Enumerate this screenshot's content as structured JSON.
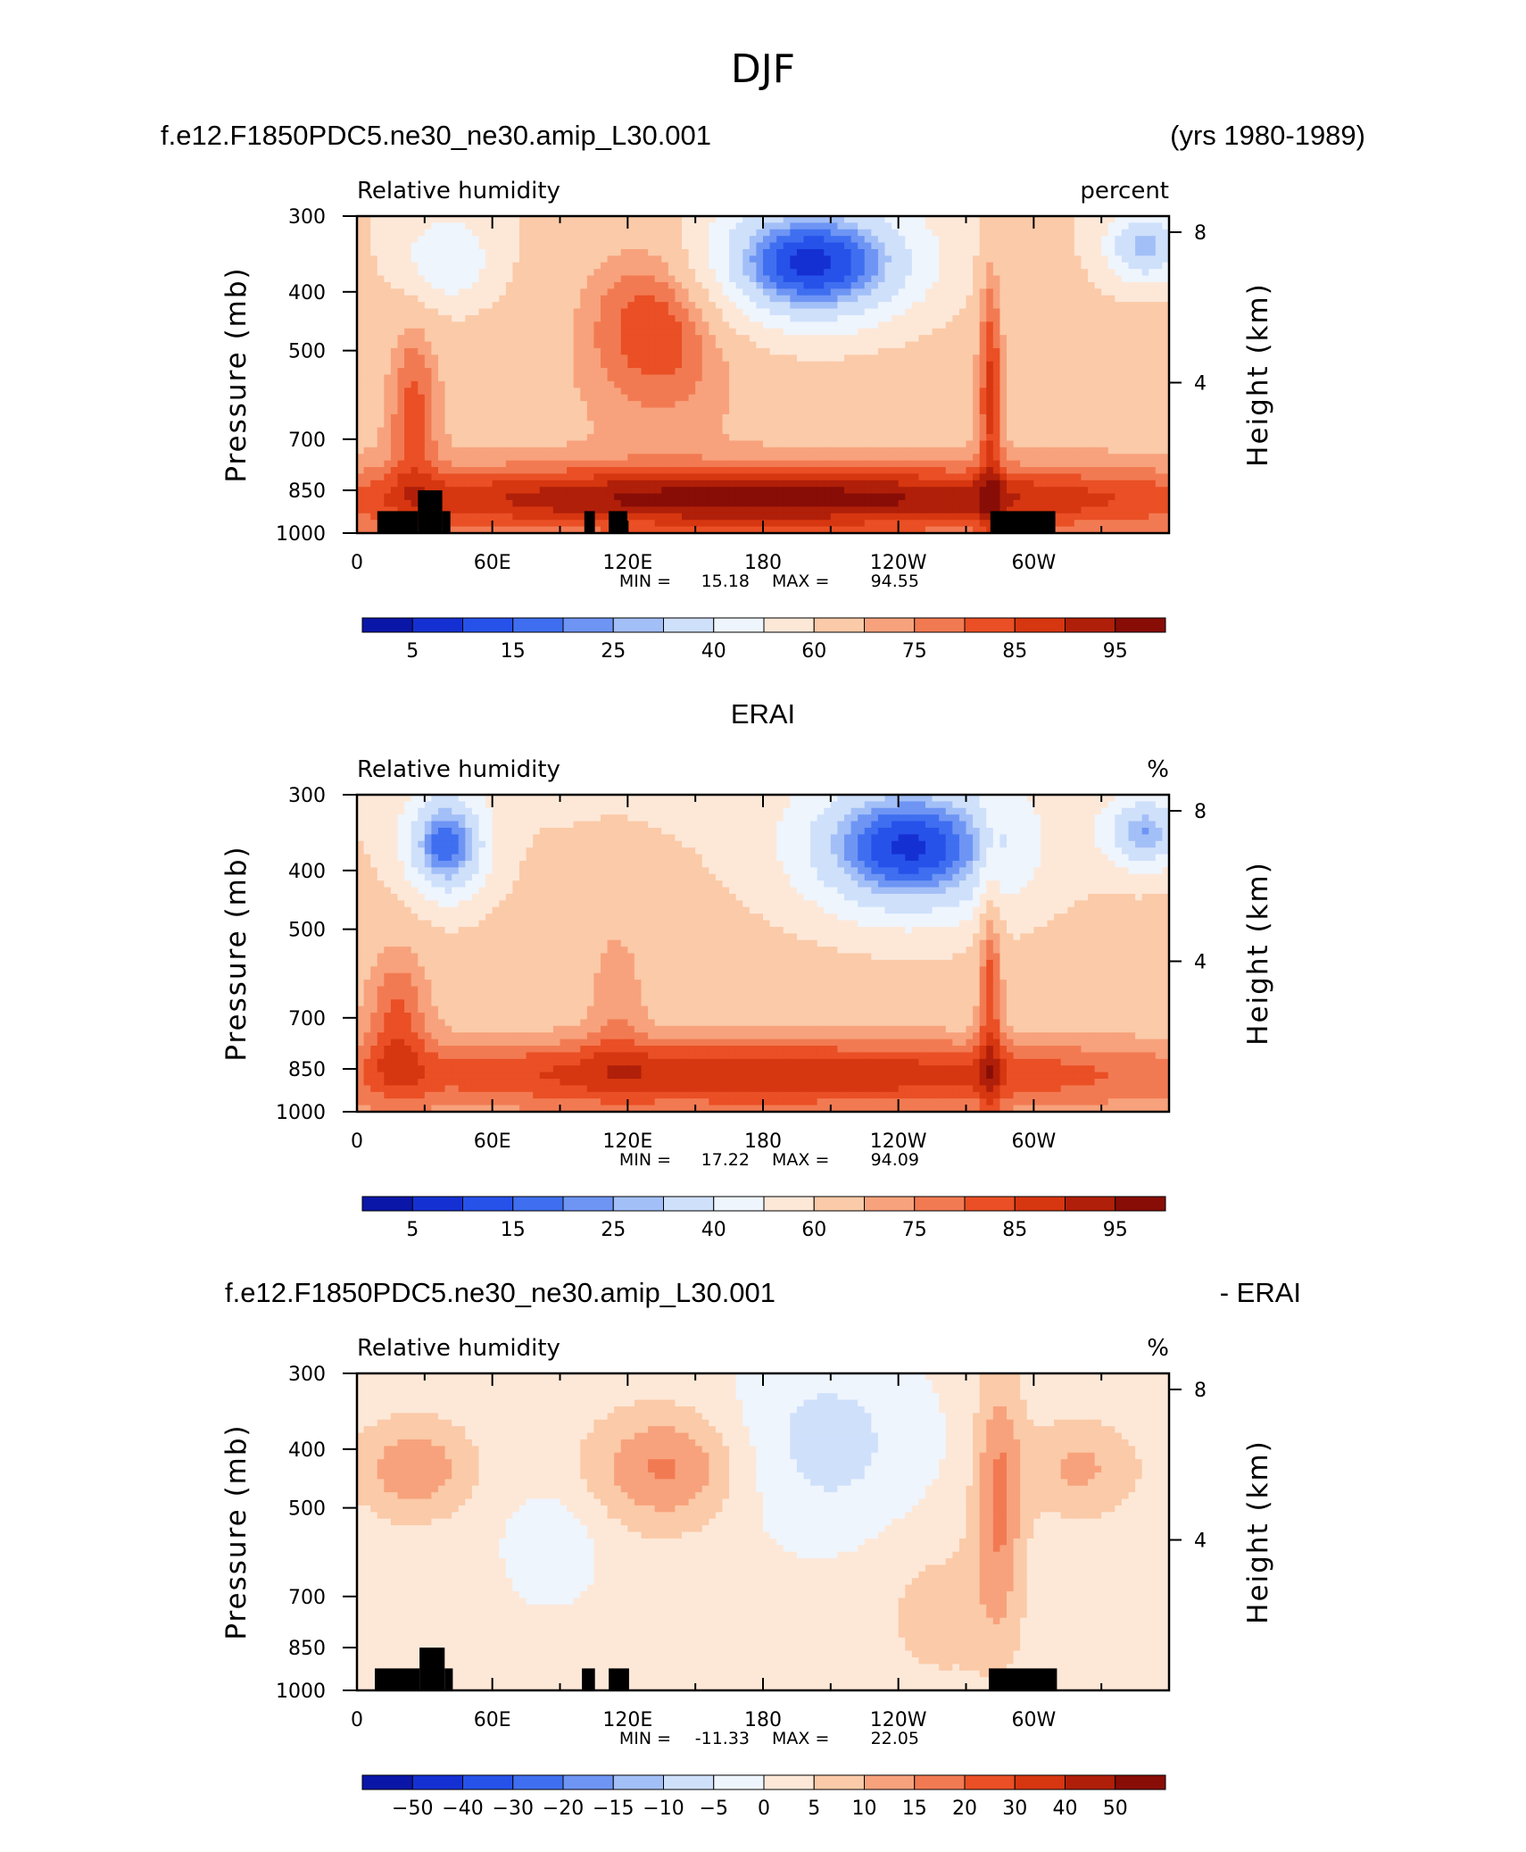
{
  "figure": {
    "title": "DJF"
  },
  "chart_data": [
    {
      "type": "heatmap",
      "header_left": "f.e12.F1850PDC5.ne30_ne30.amip_L30.001",
      "header_right": "(yrs 1980-1989)",
      "left_string": "Relative humidity",
      "right_string": "percent",
      "ylabel": "Pressure (mb)",
      "ylabel_right": "Height (km)",
      "x_ticks": [
        "0",
        "60E",
        "120E",
        "180",
        "120W",
        "60W"
      ],
      "y_ticks": [
        "300",
        "400",
        "500",
        "700",
        "850",
        "1000"
      ],
      "y_ticks_right": [
        "8",
        "4"
      ],
      "stats": {
        "min_label": "MIN =",
        "min": "15.18",
        "max_label": "MAX =",
        "max": "94.55"
      },
      "colorbar_labels": [
        "5",
        "15",
        "25",
        "40",
        "60",
        "75",
        "85",
        "95"
      ],
      "colorbar_colors": [
        "#0a16a8",
        "#1530d2",
        "#2652ea",
        "#3f6ff0",
        "#6e95f4",
        "#a3bff7",
        "#cfe0fb",
        "#eef5fd",
        "#fde8d8",
        "#fbcaa8",
        "#f7a27c",
        "#f27a52",
        "#ea4f25",
        "#d63610",
        "#b01f09",
        "#880d06"
      ],
      "fields": [
        {
          "cx": 0.56,
          "cy": 0.15,
          "rx": 0.13,
          "ry": 0.2,
          "v": -55
        },
        {
          "cx": 0.97,
          "cy": 0.1,
          "rx": 0.05,
          "ry": 0.12,
          "v": -35
        },
        {
          "cx": 0.11,
          "cy": 0.14,
          "rx": 0.06,
          "ry": 0.15,
          "v": -22
        },
        {
          "cx": 0.37,
          "cy": 0.32,
          "rx": 0.09,
          "ry": 0.28,
          "v": 22
        },
        {
          "cx": 0.5,
          "cy": 0.89,
          "rx": 0.55,
          "ry": 0.1,
          "v": 28
        },
        {
          "cx": 0.78,
          "cy": 0.5,
          "rx": 0.015,
          "ry": 0.45,
          "v": 20
        },
        {
          "cx": 0.07,
          "cy": 0.6,
          "rx": 0.03,
          "ry": 0.3,
          "v": 15
        }
      ],
      "base": 66,
      "topography": [
        {
          "x0": 0.025,
          "x1": 0.075,
          "p": 920
        },
        {
          "x0": 0.075,
          "x1": 0.105,
          "p": 850
        },
        {
          "x0": 0.105,
          "x1": 0.115,
          "p": 920
        },
        {
          "x0": 0.28,
          "x1": 0.293,
          "p": 920
        },
        {
          "x0": 0.31,
          "x1": 0.333,
          "p": 920
        },
        {
          "x0": 0.78,
          "x1": 0.86,
          "p": 920
        }
      ]
    },
    {
      "type": "heatmap",
      "header_left": "",
      "header_center": "ERAI",
      "header_right": "",
      "left_string": "Relative humidity",
      "right_string": "%",
      "ylabel": "Pressure (mb)",
      "ylabel_right": "Height (km)",
      "x_ticks": [
        "0",
        "60E",
        "120E",
        "180",
        "120W",
        "60W"
      ],
      "y_ticks": [
        "300",
        "400",
        "500",
        "700",
        "850",
        "1000"
      ],
      "y_ticks_right": [
        "8",
        "4"
      ],
      "stats": {
        "min_label": "MIN =",
        "min": "17.22",
        "max_label": "MAX =",
        "max": "94.09"
      },
      "colorbar_labels": [
        "5",
        "15",
        "25",
        "40",
        "60",
        "75",
        "85",
        "95"
      ],
      "colorbar_colors": [
        "#0a16a8",
        "#1530d2",
        "#2652ea",
        "#3f6ff0",
        "#6e95f4",
        "#a3bff7",
        "#cfe0fb",
        "#eef5fd",
        "#fde8d8",
        "#fbcaa8",
        "#f7a27c",
        "#f27a52",
        "#ea4f25",
        "#d63610",
        "#b01f09",
        "#880d06"
      ],
      "fields": [
        {
          "cx": 0.68,
          "cy": 0.17,
          "rx": 0.13,
          "ry": 0.22,
          "v": -52
        },
        {
          "cx": 0.97,
          "cy": 0.12,
          "rx": 0.05,
          "ry": 0.12,
          "v": -35
        },
        {
          "cx": 0.11,
          "cy": 0.16,
          "rx": 0.05,
          "ry": 0.17,
          "v": -45
        },
        {
          "cx": 0.5,
          "cy": 0.88,
          "rx": 0.55,
          "ry": 0.11,
          "v": 22
        },
        {
          "cx": 0.78,
          "cy": 0.55,
          "rx": 0.015,
          "ry": 0.45,
          "v": 18
        },
        {
          "cx": 0.05,
          "cy": 0.7,
          "rx": 0.04,
          "ry": 0.25,
          "v": 15
        },
        {
          "cx": 0.32,
          "cy": 0.6,
          "rx": 0.04,
          "ry": 0.3,
          "v": 8
        }
      ],
      "base": 64,
      "topography": []
    },
    {
      "type": "heatmap",
      "header_left": "f.e12.F1850PDC5.ne30_ne30.amip_L30.001",
      "header_right": "- ERAI",
      "left_string": "Relative humidity",
      "right_string": "%",
      "ylabel": "Pressure (mb)",
      "ylabel_right": "Height (km)",
      "x_ticks": [
        "0",
        "60E",
        "120E",
        "180",
        "120W",
        "60W"
      ],
      "y_ticks": [
        "300",
        "400",
        "500",
        "700",
        "850",
        "1000"
      ],
      "y_ticks_right": [
        "8",
        "4"
      ],
      "stats": {
        "min_label": "MIN =",
        "min": "-11.33",
        "max_label": "MAX =",
        "max": "22.05"
      },
      "colorbar_labels": [
        "−50",
        "−40",
        "−30",
        "−20",
        "−15",
        "−10",
        "−5",
        "0",
        "5",
        "10",
        "15",
        "20",
        "30",
        "40",
        "50"
      ],
      "colorbar_colors": [
        "#0a16a8",
        "#1530d2",
        "#2652ea",
        "#3f6ff0",
        "#6e95f4",
        "#a3bff7",
        "#cfe0fb",
        "#eef5fd",
        "#fde8d8",
        "#fbcaa8",
        "#f7a27c",
        "#f27a52",
        "#ea4f25",
        "#d63610",
        "#b01f09",
        "#880d06"
      ],
      "fields": [
        {
          "cx": 0.58,
          "cy": 0.22,
          "rx": 0.12,
          "ry": 0.3,
          "v": -9
        },
        {
          "cx": 0.38,
          "cy": 0.3,
          "rx": 0.09,
          "ry": 0.18,
          "v": 14
        },
        {
          "cx": 0.07,
          "cy": 0.3,
          "rx": 0.07,
          "ry": 0.15,
          "v": 12
        },
        {
          "cx": 0.89,
          "cy": 0.3,
          "rx": 0.07,
          "ry": 0.15,
          "v": 9
        },
        {
          "cx": 0.79,
          "cy": 0.4,
          "rx": 0.03,
          "ry": 0.4,
          "v": 14
        },
        {
          "cx": 0.24,
          "cy": 0.55,
          "rx": 0.06,
          "ry": 0.18,
          "v": -6
        },
        {
          "cx": 0.72,
          "cy": 0.75,
          "rx": 0.08,
          "ry": 0.25,
          "v": 5
        }
      ],
      "base": 2,
      "topography": [
        {
          "x0": 0.022,
          "x1": 0.077,
          "p": 920
        },
        {
          "x0": 0.077,
          "x1": 0.108,
          "p": 850
        },
        {
          "x0": 0.108,
          "x1": 0.118,
          "p": 920
        },
        {
          "x0": 0.277,
          "x1": 0.293,
          "p": 920
        },
        {
          "x0": 0.31,
          "x1": 0.335,
          "p": 920
        },
        {
          "x0": 0.778,
          "x1": 0.862,
          "p": 920
        }
      ]
    }
  ]
}
